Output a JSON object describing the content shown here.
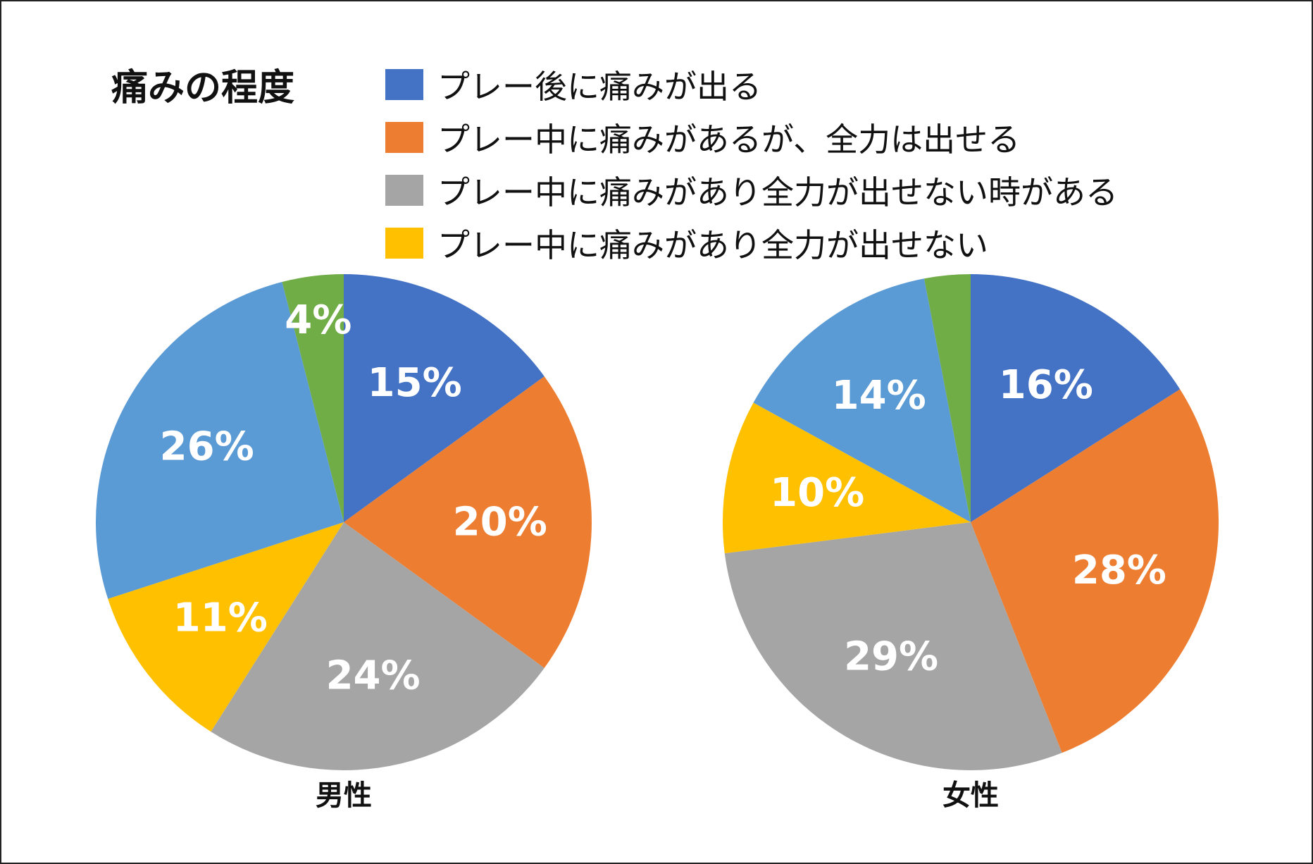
{
  "chart_data": {
    "type": "pie",
    "title": "痛みの程度",
    "legend": {
      "placement": "top",
      "entries": [
        {
          "label": "プレー後に痛みが出る",
          "color": "#4472C4"
        },
        {
          "label": "プレー中に痛みがあるが、全力は出せる",
          "color": "#ED7D31"
        },
        {
          "label": "プレー中に痛みがあり全力が出せない時がある",
          "color": "#A5A5A5"
        },
        {
          "label": "プレー中に痛みがあり全力が出せない",
          "color": "#FFC000"
        }
      ]
    },
    "pies": [
      {
        "name": "男性",
        "slices": [
          {
            "value": 15,
            "label": "15%",
            "color": "#4472C4"
          },
          {
            "value": 20,
            "label": "20%",
            "color": "#ED7D31"
          },
          {
            "value": 24,
            "label": "24%",
            "color": "#A5A5A5"
          },
          {
            "value": 11,
            "label": "11%",
            "color": "#FFC000"
          },
          {
            "value": 26,
            "label": "26%",
            "color": "#5B9BD5"
          },
          {
            "value": 4,
            "label": "4%",
            "color": "#70AD47"
          }
        ]
      },
      {
        "name": "女性",
        "slices": [
          {
            "value": 16,
            "label": "16%",
            "color": "#4472C4"
          },
          {
            "value": 28,
            "label": "28%",
            "color": "#ED7D31"
          },
          {
            "value": 29,
            "label": "29%",
            "color": "#A5A5A5"
          },
          {
            "value": 10,
            "label": "10%",
            "color": "#FFC000"
          },
          {
            "value": 14,
            "label": "14%",
            "color": "#5B9BD5"
          },
          {
            "value": 3,
            "label": "",
            "color": "#70AD47"
          }
        ]
      }
    ]
  }
}
